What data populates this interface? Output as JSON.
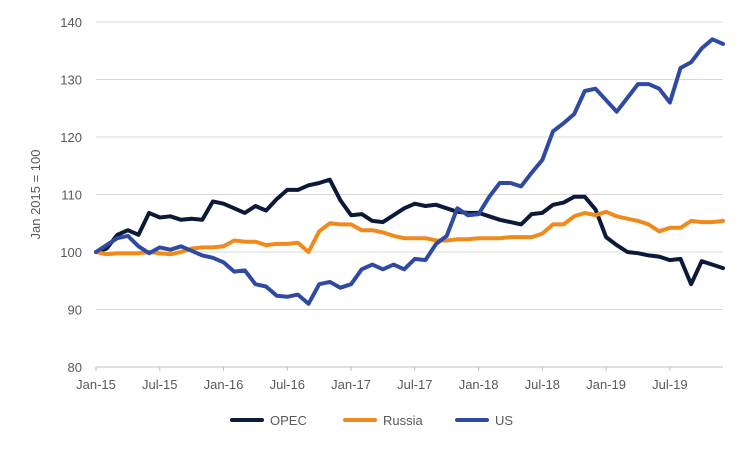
{
  "chart_data": {
    "type": "line",
    "title": "",
    "xlabel": "",
    "ylabel": "Jan 2015 = 100",
    "ylim": [
      80,
      140
    ],
    "yticks": [
      80,
      90,
      100,
      110,
      120,
      130,
      140
    ],
    "xlim": [
      "2015-01",
      "2019-12"
    ],
    "xtick_labels": [
      "Jan-15",
      "Jul-15",
      "Jan-16",
      "Jul-16",
      "Jan-17",
      "Jul-17",
      "Jan-18",
      "Jul-18",
      "Jan-19",
      "Jul-19"
    ],
    "xtick_dates": [
      "2015-01",
      "2015-07",
      "2016-01",
      "2016-07",
      "2017-01",
      "2017-07",
      "2018-01",
      "2018-07",
      "2019-01",
      "2019-07"
    ],
    "grid": "horizontal",
    "legend": "bottom",
    "series": [
      {
        "name": "OPEC",
        "color": "#0c1a3a",
        "points": [
          [
            "2015-01",
            100.0
          ],
          [
            "2015-02",
            100.6
          ],
          [
            "2015-03",
            103.0
          ],
          [
            "2015-04",
            103.8
          ],
          [
            "2015-05",
            103.0
          ],
          [
            "2015-06",
            106.8
          ],
          [
            "2015-07",
            106.0
          ],
          [
            "2015-08",
            106.2
          ],
          [
            "2015-09",
            105.6
          ],
          [
            "2015-10",
            105.8
          ],
          [
            "2015-11",
            105.6
          ],
          [
            "2015-12",
            108.8
          ],
          [
            "2016-01",
            108.4
          ],
          [
            "2016-02",
            107.6
          ],
          [
            "2016-03",
            106.8
          ],
          [
            "2016-04",
            108.0
          ],
          [
            "2016-05",
            107.2
          ],
          [
            "2016-06",
            109.2
          ],
          [
            "2016-07",
            110.8
          ],
          [
            "2016-08",
            110.8
          ],
          [
            "2016-09",
            111.6
          ],
          [
            "2016-10",
            112.0
          ],
          [
            "2016-11",
            112.6
          ],
          [
            "2016-12",
            109.0
          ],
          [
            "2017-01",
            106.4
          ],
          [
            "2017-02",
            106.6
          ],
          [
            "2017-03",
            105.4
          ],
          [
            "2017-04",
            105.2
          ],
          [
            "2017-05",
            106.4
          ],
          [
            "2017-06",
            107.6
          ],
          [
            "2017-07",
            108.4
          ],
          [
            "2017-08",
            108.0
          ],
          [
            "2017-09",
            108.2
          ],
          [
            "2017-10",
            107.6
          ],
          [
            "2017-11",
            107.0
          ],
          [
            "2017-12",
            106.8
          ],
          [
            "2018-01",
            106.8
          ],
          [
            "2018-02",
            106.2
          ],
          [
            "2018-03",
            105.6
          ],
          [
            "2018-04",
            105.2
          ],
          [
            "2018-05",
            104.8
          ],
          [
            "2018-06",
            106.6
          ],
          [
            "2018-07",
            106.8
          ],
          [
            "2018-08",
            108.2
          ],
          [
            "2018-09",
            108.6
          ],
          [
            "2018-10",
            109.6
          ],
          [
            "2018-11",
            109.6
          ],
          [
            "2018-12",
            107.4
          ],
          [
            "2019-01",
            102.6
          ],
          [
            "2019-02",
            101.2
          ],
          [
            "2019-03",
            100.0
          ],
          [
            "2019-04",
            99.8
          ],
          [
            "2019-05",
            99.4
          ],
          [
            "2019-06",
            99.2
          ],
          [
            "2019-07",
            98.6
          ],
          [
            "2019-08",
            98.8
          ],
          [
            "2019-09",
            94.4
          ],
          [
            "2019-10",
            98.4
          ],
          [
            "2019-11",
            97.8
          ],
          [
            "2019-12",
            97.2
          ]
        ]
      },
      {
        "name": "Russia",
        "color": "#f08a1c",
        "points": [
          [
            "2015-01",
            100.0
          ],
          [
            "2015-02",
            99.6
          ],
          [
            "2015-03",
            99.8
          ],
          [
            "2015-04",
            99.8
          ],
          [
            "2015-05",
            99.8
          ],
          [
            "2015-06",
            100.0
          ],
          [
            "2015-07",
            99.8
          ],
          [
            "2015-08",
            99.6
          ],
          [
            "2015-09",
            100.0
          ],
          [
            "2015-10",
            100.6
          ],
          [
            "2015-11",
            100.8
          ],
          [
            "2015-12",
            100.8
          ],
          [
            "2016-01",
            101.0
          ],
          [
            "2016-02",
            102.0
          ],
          [
            "2016-03",
            101.8
          ],
          [
            "2016-04",
            101.8
          ],
          [
            "2016-05",
            101.2
          ],
          [
            "2016-06",
            101.4
          ],
          [
            "2016-07",
            101.4
          ],
          [
            "2016-08",
            101.6
          ],
          [
            "2016-09",
            100.0
          ],
          [
            "2016-10",
            103.6
          ],
          [
            "2016-11",
            105.0
          ],
          [
            "2016-12",
            104.8
          ],
          [
            "2017-01",
            104.8
          ],
          [
            "2017-02",
            103.8
          ],
          [
            "2017-03",
            103.8
          ],
          [
            "2017-04",
            103.4
          ],
          [
            "2017-05",
            102.8
          ],
          [
            "2017-06",
            102.4
          ],
          [
            "2017-07",
            102.4
          ],
          [
            "2017-08",
            102.4
          ],
          [
            "2017-09",
            102.0
          ],
          [
            "2017-10",
            102.0
          ],
          [
            "2017-11",
            102.2
          ],
          [
            "2017-12",
            102.2
          ],
          [
            "2018-01",
            102.4
          ],
          [
            "2018-02",
            102.4
          ],
          [
            "2018-03",
            102.4
          ],
          [
            "2018-04",
            102.6
          ],
          [
            "2018-05",
            102.6
          ],
          [
            "2018-06",
            102.6
          ],
          [
            "2018-07",
            103.2
          ],
          [
            "2018-08",
            104.8
          ],
          [
            "2018-09",
            104.8
          ],
          [
            "2018-10",
            106.2
          ],
          [
            "2018-11",
            106.8
          ],
          [
            "2018-12",
            106.4
          ],
          [
            "2019-01",
            107.0
          ],
          [
            "2019-02",
            106.2
          ],
          [
            "2019-03",
            105.8
          ],
          [
            "2019-04",
            105.4
          ],
          [
            "2019-05",
            104.8
          ],
          [
            "2019-06",
            103.6
          ],
          [
            "2019-07",
            104.2
          ],
          [
            "2019-08",
            104.2
          ],
          [
            "2019-09",
            105.4
          ],
          [
            "2019-10",
            105.2
          ],
          [
            "2019-11",
            105.2
          ],
          [
            "2019-12",
            105.4
          ]
        ]
      },
      {
        "name": "US",
        "color": "#2e4aa3",
        "points": [
          [
            "2015-01",
            100.0
          ],
          [
            "2015-02",
            101.2
          ],
          [
            "2015-03",
            102.4
          ],
          [
            "2015-04",
            102.8
          ],
          [
            "2015-05",
            101.0
          ],
          [
            "2015-06",
            99.8
          ],
          [
            "2015-07",
            100.8
          ],
          [
            "2015-08",
            100.4
          ],
          [
            "2015-09",
            101.0
          ],
          [
            "2015-10",
            100.2
          ],
          [
            "2015-11",
            99.4
          ],
          [
            "2015-12",
            99.0
          ],
          [
            "2016-01",
            98.2
          ],
          [
            "2016-02",
            96.6
          ],
          [
            "2016-03",
            96.8
          ],
          [
            "2016-04",
            94.4
          ],
          [
            "2016-05",
            94.0
          ],
          [
            "2016-06",
            92.4
          ],
          [
            "2016-07",
            92.2
          ],
          [
            "2016-08",
            92.6
          ],
          [
            "2016-09",
            91.0
          ],
          [
            "2016-10",
            94.4
          ],
          [
            "2016-11",
            94.8
          ],
          [
            "2016-12",
            93.8
          ],
          [
            "2017-01",
            94.4
          ],
          [
            "2017-02",
            97.0
          ],
          [
            "2017-03",
            97.8
          ],
          [
            "2017-04",
            97.0
          ],
          [
            "2017-05",
            97.8
          ],
          [
            "2017-06",
            97.0
          ],
          [
            "2017-07",
            98.8
          ],
          [
            "2017-08",
            98.6
          ],
          [
            "2017-09",
            101.4
          ],
          [
            "2017-10",
            102.8
          ],
          [
            "2017-11",
            107.6
          ],
          [
            "2017-12",
            106.4
          ],
          [
            "2018-01",
            106.6
          ],
          [
            "2018-02",
            109.6
          ],
          [
            "2018-03",
            112.0
          ],
          [
            "2018-04",
            112.0
          ],
          [
            "2018-05",
            111.4
          ],
          [
            "2018-06",
            113.8
          ],
          [
            "2018-07",
            116.0
          ],
          [
            "2018-08",
            121.0
          ],
          [
            "2018-09",
            122.4
          ],
          [
            "2018-10",
            124.0
          ],
          [
            "2018-11",
            128.0
          ],
          [
            "2018-12",
            128.4
          ],
          [
            "2019-01",
            126.4
          ],
          [
            "2019-02",
            124.4
          ],
          [
            "2019-03",
            126.8
          ],
          [
            "2019-04",
            129.2
          ],
          [
            "2019-05",
            129.2
          ],
          [
            "2019-06",
            128.4
          ],
          [
            "2019-07",
            126.0
          ],
          [
            "2019-08",
            132.0
          ],
          [
            "2019-09",
            133.0
          ],
          [
            "2019-10",
            135.4
          ],
          [
            "2019-11",
            137.0
          ],
          [
            "2019-12",
            136.2
          ]
        ]
      }
    ]
  }
}
